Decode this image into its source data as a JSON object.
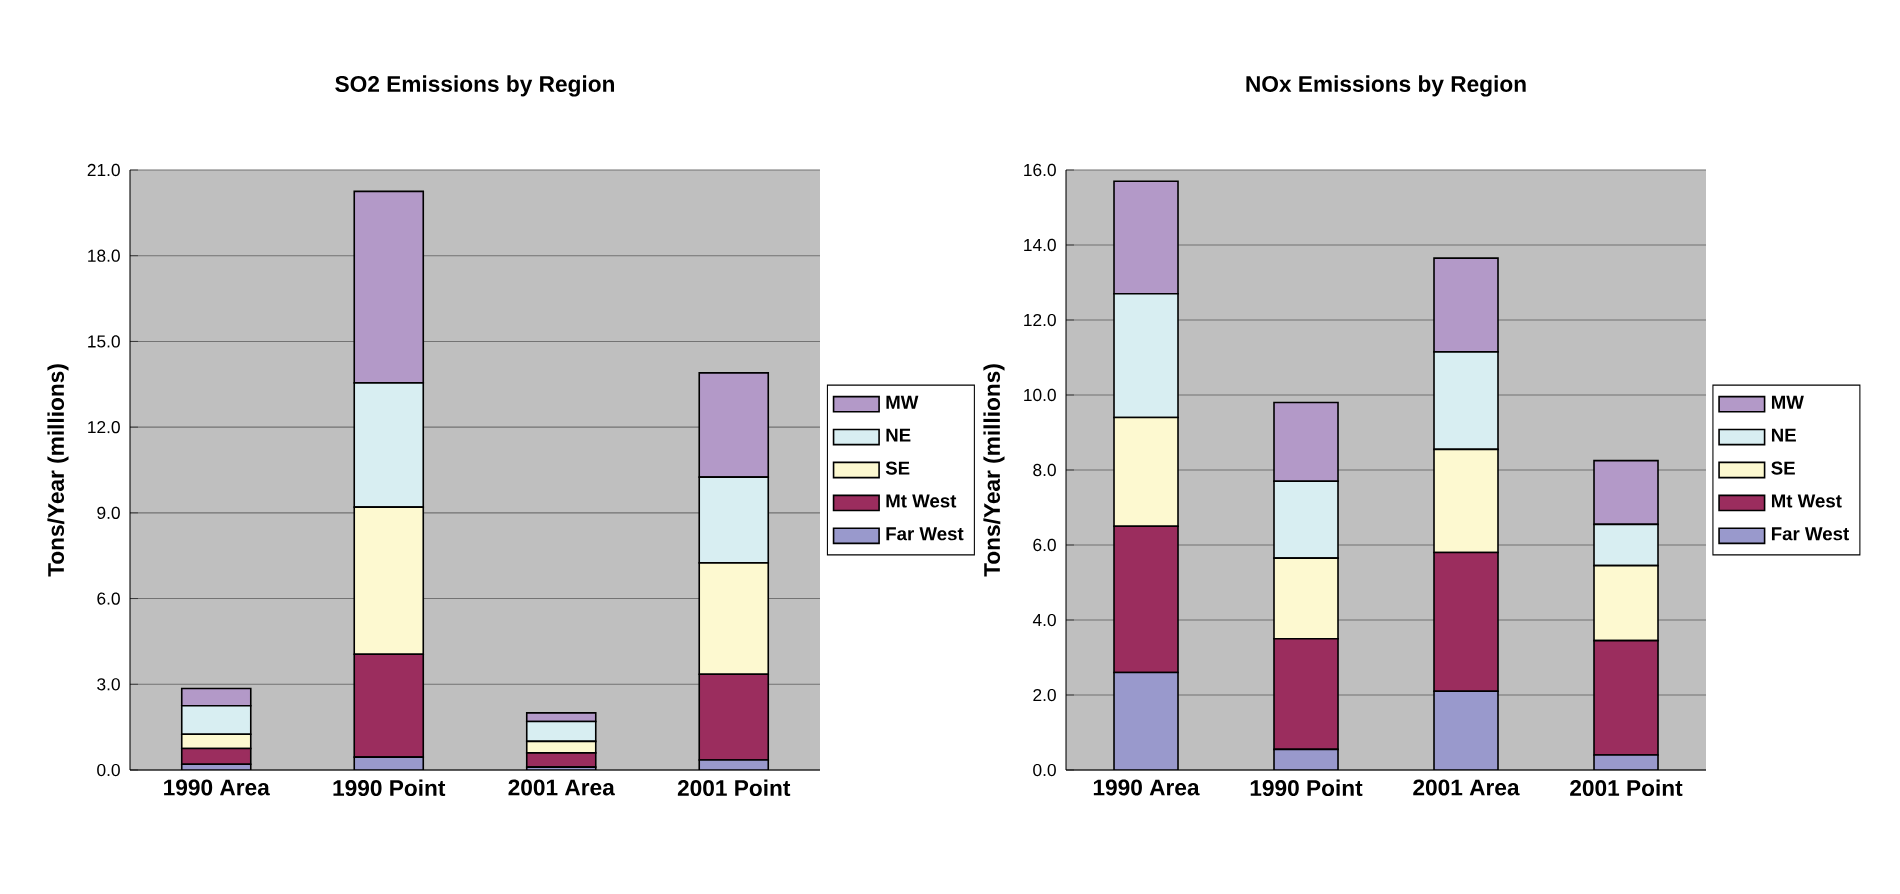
{
  "chart_data": [
    {
      "type": "bar",
      "title": "SO2 Emissions by Region",
      "ylabel": "Tons/Year (millions)",
      "stacked": true,
      "legend": "right",
      "grid": "y",
      "categories": [
        "1990 Area",
        "1990 Point",
        "2001 Area",
        "2001 Point"
      ],
      "ylim": [
        0,
        21
      ],
      "yticks": [
        {
          "value": 0,
          "label": "0.0"
        },
        {
          "value": 3,
          "label": "3.0"
        },
        {
          "value": 6,
          "label": "6.0"
        },
        {
          "value": 9,
          "label": "9.0"
        },
        {
          "value": 12,
          "label": "12.0"
        },
        {
          "value": 15,
          "label": "15.0"
        },
        {
          "value": 18,
          "label": "18.0"
        },
        {
          "value": 21,
          "label": "21.0"
        }
      ],
      "series": [
        {
          "name": "Far West",
          "color": "#9999cc",
          "values": [
            0.2,
            0.45,
            0.1,
            0.35
          ]
        },
        {
          "name": "Mt West",
          "color": "#9b2d5e",
          "values": [
            0.55,
            3.6,
            0.5,
            3.0
          ]
        },
        {
          "name": "SE",
          "color": "#fdf9d0",
          "values": [
            0.5,
            5.15,
            0.4,
            3.9
          ]
        },
        {
          "name": "NE",
          "color": "#d8eef2",
          "values": [
            1.0,
            4.35,
            0.7,
            3.0
          ]
        },
        {
          "name": "MW",
          "color": "#b399c8",
          "values": [
            0.6,
            6.7,
            0.3,
            3.65
          ]
        }
      ]
    },
    {
      "type": "bar",
      "title": "NOx Emissions by Region",
      "ylabel": "Tons/Year (millions)",
      "stacked": true,
      "legend": "right",
      "grid": "y",
      "categories": [
        "1990 Area",
        "1990 Point",
        "2001 Area",
        "2001 Point"
      ],
      "ylim": [
        0,
        16
      ],
      "yticks": [
        {
          "value": 0,
          "label": "0.0"
        },
        {
          "value": 2,
          "label": "2.0"
        },
        {
          "value": 4,
          "label": "4.0"
        },
        {
          "value": 6,
          "label": "6.0"
        },
        {
          "value": 8,
          "label": "8.0"
        },
        {
          "value": 10,
          "label": "10.0"
        },
        {
          "value": 12,
          "label": "12.0"
        },
        {
          "value": 14,
          "label": "14.0"
        },
        {
          "value": 16,
          "label": "16.0"
        }
      ],
      "series": [
        {
          "name": "Far West",
          "color": "#9999cc",
          "values": [
            2.6,
            0.55,
            2.1,
            0.4
          ]
        },
        {
          "name": "Mt West",
          "color": "#9b2d5e",
          "values": [
            3.9,
            2.95,
            3.7,
            3.05
          ]
        },
        {
          "name": "SE",
          "color": "#fdf9d0",
          "values": [
            2.9,
            2.15,
            2.75,
            2.0
          ]
        },
        {
          "name": "NE",
          "color": "#d8eef2",
          "values": [
            3.3,
            2.05,
            2.6,
            1.1
          ]
        },
        {
          "name": "MW",
          "color": "#b399c8",
          "values": [
            3.0,
            2.1,
            2.5,
            1.7
          ]
        }
      ]
    }
  ]
}
